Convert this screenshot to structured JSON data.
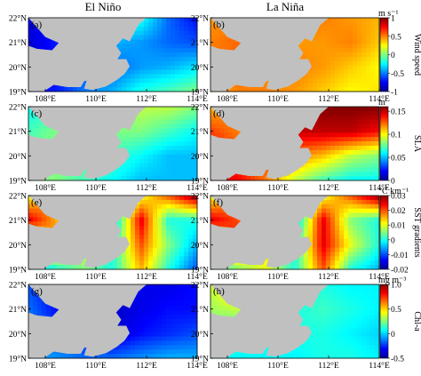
{
  "figure": {
    "column_titles": [
      "El Niño",
      "La Niña"
    ]
  },
  "chart_data": [
    {
      "type": "heatmap",
      "title": "Wind speed",
      "unit": "m s⁻¹",
      "colorbar_ticks": [
        "1",
        "0.5",
        "0",
        "-0.5",
        "-1"
      ],
      "clim": [
        -1,
        1
      ],
      "xlim": [
        "107.3°E",
        "114°E"
      ],
      "ylim": [
        "19°N",
        "22°N"
      ],
      "x_ticks": [
        "108°E",
        "110°E",
        "112°E",
        "114°E"
      ],
      "y_ticks": [
        "22°N",
        "21°N",
        "20°N",
        "19°N"
      ],
      "panels": [
        {
          "label": "(a)",
          "phase": "El Niño",
          "field": [
            [
              -0.8,
              -0.75,
              -0.35,
              -0.1,
              -0.2,
              -0.55,
              -0.75
            ],
            [
              -0.85,
              -0.7,
              -0.45,
              -0.4,
              -0.45,
              -0.55,
              -0.6
            ],
            [
              -0.85,
              -0.75,
              -0.6,
              -0.55,
              -0.45,
              -0.4,
              -0.3
            ],
            [
              -0.75,
              -0.7,
              -0.5,
              -0.4,
              -0.2,
              -0.1,
              0.0
            ]
          ]
        },
        {
          "label": "(b)",
          "phase": "La Niña",
          "field": [
            [
              0.45,
              0.5,
              0.45,
              0.55,
              0.5,
              0.45,
              0.4
            ],
            [
              0.5,
              0.55,
              0.5,
              0.45,
              0.45,
              0.5,
              0.35
            ],
            [
              0.5,
              0.55,
              0.45,
              0.5,
              0.45,
              0.35,
              0.25
            ],
            [
              0.4,
              0.5,
              0.5,
              0.45,
              0.35,
              0.25,
              0.3
            ]
          ]
        }
      ]
    },
    {
      "type": "heatmap",
      "title": "SLA",
      "unit": "m",
      "colorbar_ticks": [
        "0.15",
        "0.1",
        "0.05",
        "0"
      ],
      "clim": [
        0,
        0.16
      ],
      "xlim": [
        "107.3°E",
        "114°E"
      ],
      "ylim": [
        "19°N",
        "22°N"
      ],
      "x_ticks": [
        "108°E",
        "110°E",
        "112°E",
        "114°E"
      ],
      "y_ticks": [
        "22°N",
        "21°N",
        "20°N",
        "19°N"
      ],
      "panels": [
        {
          "label": "(c)",
          "phase": "El Niño",
          "field": [
            [
              0.06,
              0.07,
              0.08,
              0.08,
              0.09,
              0.09,
              0.08
            ],
            [
              0.07,
              0.08,
              0.08,
              0.08,
              0.08,
              0.07,
              0.06
            ],
            [
              0.08,
              0.08,
              0.08,
              0.07,
              0.06,
              0.05,
              0.05
            ],
            [
              0.08,
              0.08,
              0.07,
              0.06,
              0.05,
              0.05,
              0.05
            ]
          ]
        },
        {
          "label": "(d)",
          "phase": "La Niña",
          "field": [
            [
              0.11,
              0.12,
              0.12,
              0.15,
              0.16,
              0.16,
              0.16
            ],
            [
              0.13,
              0.12,
              0.12,
              0.15,
              0.15,
              0.15,
              0.14
            ],
            [
              0.14,
              0.13,
              0.13,
              0.12,
              0.11,
              0.09,
              0.08
            ],
            [
              0.15,
              0.14,
              0.12,
              0.09,
              0.07,
              0.06,
              0.06
            ]
          ]
        }
      ]
    },
    {
      "type": "heatmap",
      "title": "SST gradients",
      "unit": "°C km⁻¹",
      "colorbar_ticks": [
        "0.03",
        "0.02",
        "0.01",
        "0",
        "-0.01",
        "-0.02"
      ],
      "clim": [
        -0.02,
        0.03
      ],
      "xlim": [
        "107.3°E",
        "114°E"
      ],
      "ylim": [
        "19°N",
        "22°N"
      ],
      "x_ticks": [
        "108°E",
        "110°E",
        "112°E",
        "114°E"
      ],
      "y_ticks": [
        "22°N",
        "21°N",
        "20°N",
        "19°N"
      ],
      "panels": [
        {
          "label": "(e)",
          "phase": "El Niño",
          "field": [
            [
              0.01,
              0.02,
              0.0,
              0.0,
              0.01,
              0.02,
              0.03
            ],
            [
              0.025,
              0.015,
              0.0,
              -0.005,
              0.025,
              0.0,
              0.0
            ],
            [
              0.0,
              0.02,
              0.01,
              0.0,
              0.02,
              0.005,
              -0.005
            ],
            [
              -0.005,
              0.0,
              0.005,
              0.0,
              0.015,
              0.0,
              -0.01
            ]
          ]
        },
        {
          "label": "(f)",
          "phase": "La Niña",
          "field": [
            [
              0.01,
              0.02,
              0.0,
              0.0,
              0.01,
              0.02,
              0.03
            ],
            [
              0.025,
              0.02,
              0.005,
              -0.005,
              0.025,
              0.005,
              0.0
            ],
            [
              0.005,
              0.025,
              0.015,
              0.0,
              0.025,
              0.01,
              0.0
            ],
            [
              0.0,
              0.005,
              0.01,
              0.0,
              0.02,
              0.0,
              -0.005
            ]
          ]
        }
      ]
    },
    {
      "type": "heatmap",
      "title": "Chl-a",
      "unit": "mg m⁻³",
      "colorbar_ticks": [
        "1.0",
        "0.5",
        "0",
        "-0.5"
      ],
      "clim": [
        -0.5,
        1.0
      ],
      "xlim": [
        "107.3°E",
        "114°E"
      ],
      "ylim": [
        "19°N",
        "22°N"
      ],
      "x_ticks": [
        "108°E",
        "110°E",
        "112°E",
        "114°E"
      ],
      "y_ticks": [
        "22°N",
        "21°N",
        "20°N",
        "19°N"
      ],
      "panels": [
        {
          "label": "(g)",
          "phase": "El Niño",
          "field": [
            [
              -0.2,
              -0.3,
              -0.35,
              -0.3,
              -0.35,
              -0.35,
              -0.3
            ],
            [
              -0.15,
              -0.3,
              -0.35,
              -0.4,
              -0.35,
              -0.3,
              -0.3
            ],
            [
              -0.1,
              -0.2,
              -0.3,
              -0.4,
              -0.3,
              -0.25,
              -0.2
            ],
            [
              -0.05,
              -0.1,
              -0.15,
              -0.15,
              -0.1,
              -0.05,
              -0.05
            ]
          ]
        },
        {
          "label": "(h)",
          "phase": "La Niña",
          "field": [
            [
              0.35,
              0.6,
              0.3,
              0.1,
              0.1,
              0.05,
              0.05
            ],
            [
              0.3,
              0.35,
              0.2,
              0.1,
              0.15,
              0.1,
              0.05
            ],
            [
              0.2,
              0.15,
              0.1,
              0.1,
              0.1,
              0.05,
              0.0
            ],
            [
              0.1,
              0.05,
              0.05,
              0.05,
              0.1,
              0.1,
              0.05
            ]
          ]
        }
      ]
    }
  ]
}
